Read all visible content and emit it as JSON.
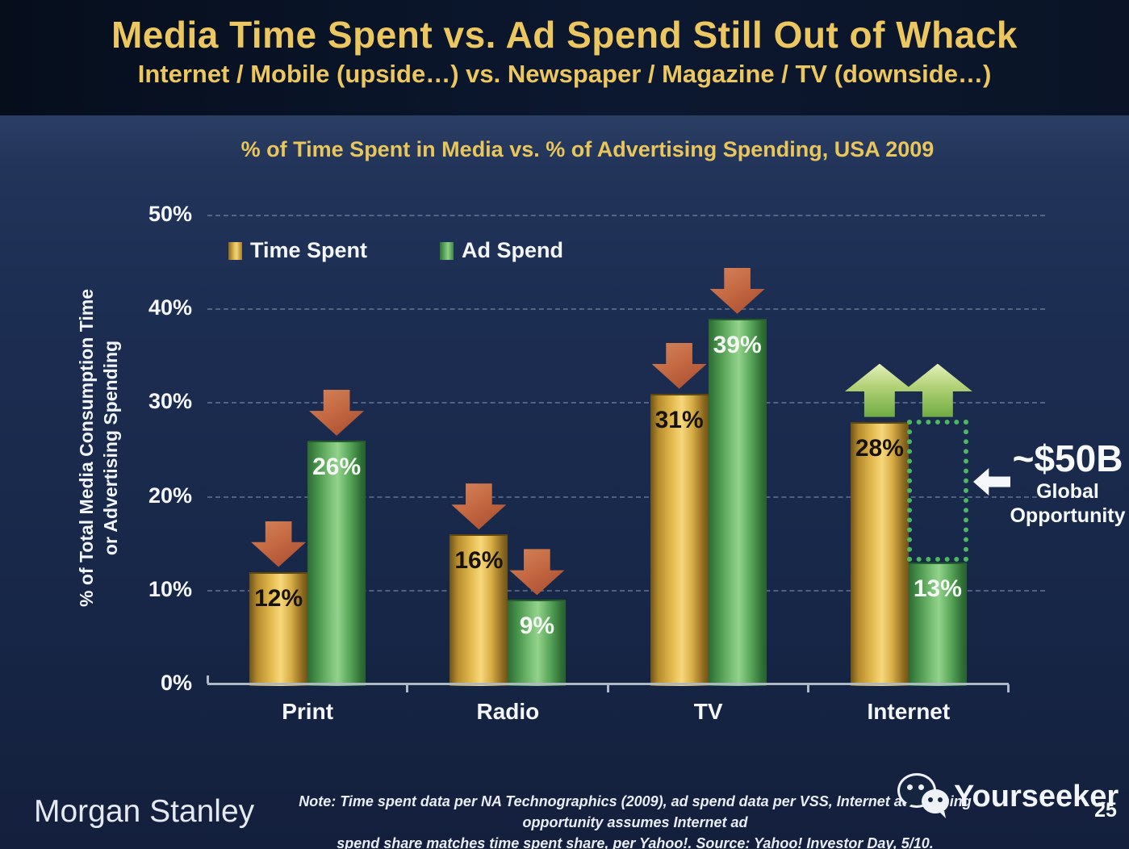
{
  "slide": {
    "title": "Media Time Spent vs. Ad Spend Still Out of Whack",
    "subtitle": "Internet / Mobile (upside…) vs. Newspaper / Magazine / TV (downside…)"
  },
  "colors": {
    "background": "#14213c",
    "header_band": "#0a1424",
    "title_gold": "#ecc75f",
    "time_spent_bar": "#e3b84e",
    "ad_spend_bar": "#5fb263",
    "down_arrow": "#c4633f",
    "up_arrow": "#a4ca66",
    "dotted_box": "#4eb861",
    "axis": "#aeb9c6",
    "text_white": "#f4f6fa"
  },
  "chart_data": {
    "type": "bar",
    "title": "% of Time Spent in Media vs. % of Advertising Spending, USA 2009",
    "categories": [
      "Print",
      "Radio",
      "TV",
      "Internet"
    ],
    "series": [
      {
        "name": "Time Spent",
        "values": [
          12,
          16,
          31,
          28
        ],
        "color": "#e3b84e",
        "label_suffix": "%"
      },
      {
        "name": "Ad Spend",
        "values": [
          26,
          9,
          39,
          13
        ],
        "color": "#5fb263",
        "label_suffix": "%"
      }
    ],
    "ylabel_lines": [
      "% of Total Media Consumption Time",
      "or Advertising Spending"
    ],
    "yticks": [
      {
        "value": 0,
        "label": "0%"
      },
      {
        "value": 10,
        "label": "10%"
      },
      {
        "value": 20,
        "label": "20%"
      },
      {
        "value": 30,
        "label": "30%"
      },
      {
        "value": 40,
        "label": "40%"
      },
      {
        "value": 50,
        "label": "50%"
      }
    ],
    "ylim": [
      0,
      50
    ],
    "grid": "dashed-horizontal",
    "legend_position": "top-left-inside-plot",
    "arrows": [
      {
        "category": "Print",
        "series": "Time Spent",
        "direction": "down",
        "anchor_pct": 12
      },
      {
        "category": "Print",
        "series": "Ad Spend",
        "direction": "down",
        "anchor_pct": 26
      },
      {
        "category": "Radio",
        "series": "Time Spent",
        "direction": "down",
        "anchor_pct": 16
      },
      {
        "category": "Radio",
        "series": "Ad Spend",
        "direction": "down",
        "anchor_pct": 9
      },
      {
        "category": "TV",
        "series": "Time Spent",
        "direction": "down",
        "anchor_pct": 31
      },
      {
        "category": "TV",
        "series": "Ad Spend",
        "direction": "down",
        "anchor_pct": 39
      },
      {
        "category": "Internet",
        "series": "Time Spent",
        "direction": "up",
        "anchor_pct": 28
      },
      {
        "category": "Internet",
        "series": "Ad Spend",
        "direction": "up",
        "anchor_pct": 28
      }
    ],
    "opportunity_annotation": {
      "value": "~$50B",
      "label_line1": "Global",
      "label_line2": "Opportunity",
      "gap": "Internet Ad Spend 13% vs Time Spent 28%"
    }
  },
  "footer": {
    "brand": "Morgan Stanley",
    "note_line1": "Note: Time spent data per NA Technographics (2009), ad spend data per VSS, Internet advertising opportunity assumes Internet ad",
    "note_line2": "spend share matches time spent share, per Yahoo!. Source: Yahoo! Investor Day, 5/10.",
    "watermark": "Yourseeker",
    "page_number": "25"
  }
}
